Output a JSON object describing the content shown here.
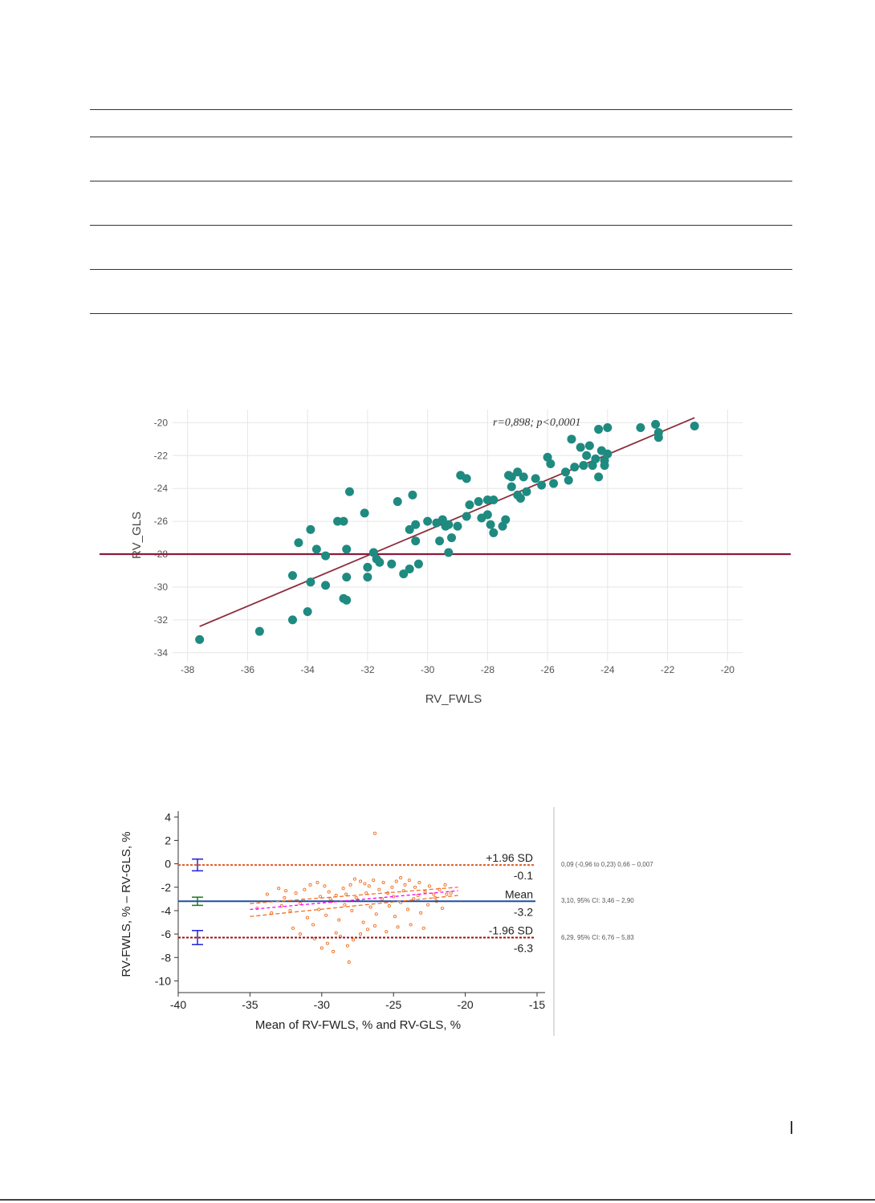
{
  "table": {
    "rows": 5
  },
  "chart_data": [
    {
      "type": "scatter",
      "xlabel": "RV_FWLS",
      "ylabel": "RV_GLS",
      "annotation": "r=0,898; p<0,0001",
      "xlim": [
        -38.5,
        -19.5
      ],
      "ylim": [
        -34.5,
        -19.2
      ],
      "x_ticks": [
        "-38",
        "-36",
        "-34",
        "-32",
        "-30",
        "-28",
        "-26",
        "-24",
        "-22",
        "-20"
      ],
      "y_ticks": [
        "-20",
        "-22",
        "-24",
        "-26",
        "-28",
        "-30",
        "-32",
        "-34"
      ],
      "grid": true,
      "points": [
        [
          -37.6,
          -33.2
        ],
        [
          -35.6,
          -32.7
        ],
        [
          -34.5,
          -32.0
        ],
        [
          -34.0,
          -31.5
        ],
        [
          -34.5,
          -29.3
        ],
        [
          -34.3,
          -27.3
        ],
        [
          -33.9,
          -26.5
        ],
        [
          -33.9,
          -29.7
        ],
        [
          -33.7,
          -27.7
        ],
        [
          -33.4,
          -28.1
        ],
        [
          -33.4,
          -29.9
        ],
        [
          -33.0,
          -26.0
        ],
        [
          -32.8,
          -26.0
        ],
        [
          -32.7,
          -27.7
        ],
        [
          -32.7,
          -29.4
        ],
        [
          -32.8,
          -30.7
        ],
        [
          -32.7,
          -30.8
        ],
        [
          -32.6,
          -24.2
        ],
        [
          -32.1,
          -25.5
        ],
        [
          -32.0,
          -28.8
        ],
        [
          -32.0,
          -29.4
        ],
        [
          -31.8,
          -27.9
        ],
        [
          -31.7,
          -28.3
        ],
        [
          -31.6,
          -28.5
        ],
        [
          -31.2,
          -28.6
        ],
        [
          -31.0,
          -24.8
        ],
        [
          -30.8,
          -29.2
        ],
        [
          -30.6,
          -28.9
        ],
        [
          -30.5,
          -24.4
        ],
        [
          -30.6,
          -26.5
        ],
        [
          -30.4,
          -26.2
        ],
        [
          -30.4,
          -27.2
        ],
        [
          -30.3,
          -28.6
        ],
        [
          -30.0,
          -26.0
        ],
        [
          -29.7,
          -26.1
        ],
        [
          -29.6,
          -27.2
        ],
        [
          -29.5,
          -25.9
        ],
        [
          -29.4,
          -26.3
        ],
        [
          -29.3,
          -26.2
        ],
        [
          -29.3,
          -27.9
        ],
        [
          -29.2,
          -27.0
        ],
        [
          -29.0,
          -26.3
        ],
        [
          -28.9,
          -23.2
        ],
        [
          -28.7,
          -23.4
        ],
        [
          -28.7,
          -25.7
        ],
        [
          -28.6,
          -25.0
        ],
        [
          -28.3,
          -24.8
        ],
        [
          -28.2,
          -25.8
        ],
        [
          -28.0,
          -24.7
        ],
        [
          -28.0,
          -25.6
        ],
        [
          -27.9,
          -26.2
        ],
        [
          -27.8,
          -26.7
        ],
        [
          -27.8,
          -24.7
        ],
        [
          -27.5,
          -26.3
        ],
        [
          -27.4,
          -25.9
        ],
        [
          -27.3,
          -23.2
        ],
        [
          -27.2,
          -23.3
        ],
        [
          -27.2,
          -23.9
        ],
        [
          -27.0,
          -23.0
        ],
        [
          -27.0,
          -24.4
        ],
        [
          -26.9,
          -24.6
        ],
        [
          -26.8,
          -23.3
        ],
        [
          -26.7,
          -24.2
        ],
        [
          -26.4,
          -23.4
        ],
        [
          -26.2,
          -23.8
        ],
        [
          -26.0,
          -22.1
        ],
        [
          -25.9,
          -22.5
        ],
        [
          -25.8,
          -23.7
        ],
        [
          -25.4,
          -23.0
        ],
        [
          -25.3,
          -23.5
        ],
        [
          -25.2,
          -21.0
        ],
        [
          -25.1,
          -22.7
        ],
        [
          -24.9,
          -21.5
        ],
        [
          -24.8,
          -22.6
        ],
        [
          -24.7,
          -22.0
        ],
        [
          -24.6,
          -21.4
        ],
        [
          -24.5,
          -22.6
        ],
        [
          -24.4,
          -22.2
        ],
        [
          -24.3,
          -20.4
        ],
        [
          -24.2,
          -21.7
        ],
        [
          -24.1,
          -22.3
        ],
        [
          -24.1,
          -22.6
        ],
        [
          -24.0,
          -20.3
        ],
        [
          -24.0,
          -21.9
        ],
        [
          -24.3,
          -23.3
        ],
        [
          -22.9,
          -20.3
        ],
        [
          -22.4,
          -20.1
        ],
        [
          -22.3,
          -20.6
        ],
        [
          -22.3,
          -20.9
        ],
        [
          -21.1,
          -20.2
        ]
      ],
      "regression": {
        "x": [
          -37.6,
          -21.1
        ],
        "y": [
          -32.4,
          -19.7
        ]
      },
      "hline": -28.0,
      "colors": {
        "point": "#1f8a80",
        "line": "#8c2f3d",
        "hline": "#8c1b3a"
      }
    },
    {
      "type": "scatter",
      "xlabel": "Mean of  RV-FWLS, % and  RV-GLS, %",
      "ylabel": "RV-FWLS, % – RV-GLS, %",
      "xlim": [
        -40,
        -15
      ],
      "ylim": [
        -11,
        4.5
      ],
      "x_ticks": [
        "-40",
        "-35",
        "-30",
        "-25",
        "-20",
        "-15"
      ],
      "y_ticks": [
        "4",
        "2",
        "0",
        "-2",
        "-4",
        "-6",
        "-8",
        "-10"
      ],
      "lines": [
        {
          "label": "+1.96 SD",
          "value_text": "-0.1",
          "y": -0.1,
          "style": "dotted",
          "color": "#e05a2a"
        },
        {
          "label": "Mean",
          "value_text": "-3.2",
          "y": -3.2,
          "style": "solid",
          "color": "#1f4fa0"
        },
        {
          "label": "-1.96 SD",
          "value_text": "-6.3",
          "y": -6.3,
          "style": "dotted",
          "color": "#a01010"
        }
      ],
      "ci_bars": [
        {
          "y": -0.1,
          "low": -0.6,
          "high": 0.4,
          "color": "#2222dd"
        },
        {
          "y": -3.2,
          "low": -3.55,
          "high": -2.85,
          "color": "#1a7a1a"
        },
        {
          "y": -6.3,
          "low": -6.9,
          "high": -5.7,
          "color": "#2222dd"
        }
      ],
      "points": [
        [
          -26.3,
          2.6
        ],
        [
          -33.8,
          -2.6
        ],
        [
          -33.0,
          -2.1
        ],
        [
          -32.5,
          -2.3
        ],
        [
          -31.8,
          -2.5
        ],
        [
          -31.2,
          -2.2
        ],
        [
          -30.8,
          -1.8
        ],
        [
          -30.3,
          -1.6
        ],
        [
          -29.8,
          -1.9
        ],
        [
          -29.5,
          -2.4
        ],
        [
          -29.0,
          -2.7
        ],
        [
          -28.5,
          -2.1
        ],
        [
          -28.0,
          -1.8
        ],
        [
          -27.7,
          -1.3
        ],
        [
          -27.3,
          -1.5
        ],
        [
          -27.0,
          -1.7
        ],
        [
          -26.7,
          -1.9
        ],
        [
          -26.4,
          -1.4
        ],
        [
          -26.0,
          -2.2
        ],
        [
          -25.7,
          -1.6
        ],
        [
          -25.4,
          -2.5
        ],
        [
          -25.1,
          -2.0
        ],
        [
          -24.8,
          -1.5
        ],
        [
          -24.5,
          -1.2
        ],
        [
          -24.2,
          -1.8
        ],
        [
          -23.9,
          -1.4
        ],
        [
          -23.5,
          -2.0
        ],
        [
          -23.2,
          -1.6
        ],
        [
          -22.8,
          -2.4
        ],
        [
          -22.5,
          -1.9
        ],
        [
          -22.2,
          -2.6
        ],
        [
          -21.8,
          -2.2
        ],
        [
          -21.4,
          -1.8
        ],
        [
          -21.0,
          -2.5
        ],
        [
          -34.5,
          -3.8
        ],
        [
          -33.5,
          -4.2
        ],
        [
          -32.8,
          -3.6
        ],
        [
          -32.2,
          -4.0
        ],
        [
          -31.5,
          -3.4
        ],
        [
          -31.0,
          -4.6
        ],
        [
          -30.6,
          -5.2
        ],
        [
          -30.2,
          -3.9
        ],
        [
          -29.7,
          -4.4
        ],
        [
          -29.3,
          -3.2
        ],
        [
          -28.8,
          -4.8
        ],
        [
          -28.4,
          -3.5
        ],
        [
          -27.9,
          -4.0
        ],
        [
          -27.5,
          -3.1
        ],
        [
          -27.1,
          -5.0
        ],
        [
          -26.6,
          -3.7
        ],
        [
          -26.2,
          -4.3
        ],
        [
          -25.8,
          -3.0
        ],
        [
          -25.3,
          -3.6
        ],
        [
          -24.9,
          -4.5
        ],
        [
          -24.5,
          -3.3
        ],
        [
          -24.0,
          -3.9
        ],
        [
          -23.6,
          -3.0
        ],
        [
          -23.1,
          -4.2
        ],
        [
          -22.6,
          -3.5
        ],
        [
          -22.1,
          -2.9
        ],
        [
          -21.6,
          -3.8
        ],
        [
          -30.5,
          -6.4
        ],
        [
          -30.0,
          -7.2
        ],
        [
          -29.6,
          -6.8
        ],
        [
          -29.2,
          -7.5
        ],
        [
          -28.7,
          -6.2
        ],
        [
          -28.2,
          -7.0
        ],
        [
          -27.8,
          -6.5
        ],
        [
          -27.3,
          -6.0
        ],
        [
          -26.8,
          -5.6
        ],
        [
          -26.3,
          -5.3
        ],
        [
          -25.5,
          -5.8
        ],
        [
          -24.7,
          -5.4
        ],
        [
          -23.8,
          -5.2
        ],
        [
          -22.9,
          -5.5
        ],
        [
          -28.1,
          -8.4
        ],
        [
          -31.5,
          -6.0
        ],
        [
          -32.0,
          -5.5
        ],
        [
          -29.0,
          -5.9
        ],
        [
          -25.0,
          -2.8
        ],
        [
          -24.3,
          -2.3
        ],
        [
          -23.3,
          -2.7
        ],
        [
          -22.0,
          -3.2
        ],
        [
          -21.3,
          -2.6
        ],
        [
          -26.9,
          -2.5
        ],
        [
          -27.6,
          -2.9
        ],
        [
          -28.3,
          -2.6
        ],
        [
          -29.4,
          -3.0
        ],
        [
          -30.1,
          -2.8
        ],
        [
          -31.3,
          -3.1
        ],
        [
          -32.6,
          -2.9
        ]
      ],
      "trend": {
        "x": [
          -35,
          -20.5
        ],
        "y": [
          -3.9,
          -2.3
        ],
        "color": "#ff00ff"
      },
      "trend_ci_upper": {
        "x": [
          -35,
          -20.5
        ],
        "y": [
          -3.4,
          -2.0
        ],
        "color": "#f07020"
      },
      "trend_ci_lower": {
        "x": [
          -35,
          -20.5
        ],
        "y": [
          -4.5,
          -2.7
        ],
        "color": "#f07020"
      },
      "side_notes": [
        "0,09 (-0,96 to 0,23) 0,66 – 0,007",
        "3,10, 95% CI: 3,46 – 2,90",
        "6,29, 95% CI: 6,76 – 5,83"
      ],
      "colors": {
        "point": "#f07020"
      }
    }
  ]
}
